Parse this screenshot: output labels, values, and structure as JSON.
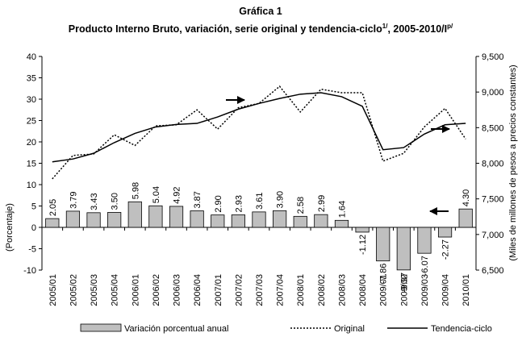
{
  "chart_data": {
    "type": "bar",
    "title": "Gráfica 1",
    "subtitle_parts": [
      "Producto Interno Bruto, variación, serie original y tendencia-ciclo",
      "1/",
      ", 2005-2010/I",
      "p/"
    ],
    "ylabel": "(Porcentaje)",
    "y2label": "(Miles de millones de pesos a precios constantes)",
    "categories": [
      "2005/01",
      "2005/02",
      "2005/03",
      "2005/04",
      "2006/01",
      "2006/02",
      "2006/03",
      "2006/04",
      "2007/01",
      "2007/02",
      "2007/03",
      "2007/04",
      "2008/01",
      "2008/02",
      "2008/03",
      "2008/04",
      "2009/01",
      "2009/02",
      "2009/03",
      "2009/04",
      "2010/01"
    ],
    "series": [
      {
        "name": "Variación porcentual anual",
        "type": "bar",
        "color": "#bfbfbf",
        "axis": "y",
        "values": [
          2.05,
          3.79,
          3.43,
          3.5,
          5.98,
          5.04,
          4.92,
          3.87,
          2.9,
          2.93,
          3.61,
          3.9,
          2.58,
          2.99,
          1.64,
          -1.12,
          -7.86,
          -9.97,
          -6.07,
          -2.27,
          4.3
        ],
        "value_labels": [
          "2.05",
          "3.79",
          "3.43",
          "3.50",
          "5.98",
          "5.04",
          "4.92",
          "3.87",
          "2.90",
          "2.93",
          "3.61",
          "3.90",
          "2.58",
          "2.99",
          "1.64",
          "-1.12",
          "-7.86",
          "-9.97",
          "-6.07",
          "-2.27",
          "4.30"
        ]
      },
      {
        "name": "Original",
        "type": "line",
        "dash": true,
        "color": "#000000",
        "axis": "y2",
        "values": [
          7780,
          8110,
          8130,
          8400,
          8250,
          8525,
          8540,
          8750,
          8480,
          8780,
          8840,
          9080,
          8720,
          9040,
          8990,
          8990,
          8030,
          8140,
          8510,
          8770,
          8340
        ]
      },
      {
        "name": "Tendencia-ciclo",
        "type": "line",
        "dash": false,
        "color": "#000000",
        "axis": "y2",
        "values": [
          8020,
          8060,
          8140,
          8290,
          8420,
          8510,
          8545,
          8560,
          8650,
          8760,
          8840,
          8910,
          8970,
          8990,
          8935,
          8800,
          8190,
          8220,
          8410,
          8540,
          8560
        ]
      }
    ],
    "ylim": [
      -10,
      40
    ],
    "yticks": [
      -10,
      -5,
      0,
      5,
      10,
      15,
      20,
      25,
      30,
      35,
      40
    ],
    "y2lim": [
      6500,
      9500
    ],
    "y2ticks": [
      {
        "value": 6500,
        "label": "6,500"
      },
      {
        "value": 7000,
        "label": "7,000"
      },
      {
        "value": 7500,
        "label": "7,500"
      },
      {
        "value": 8000,
        "label": "8,000"
      },
      {
        "value": 8500,
        "label": "8,500"
      },
      {
        "value": 9000,
        "label": "9,000"
      },
      {
        "value": 9500,
        "label": "9,500"
      }
    ],
    "legend": "bottom"
  }
}
